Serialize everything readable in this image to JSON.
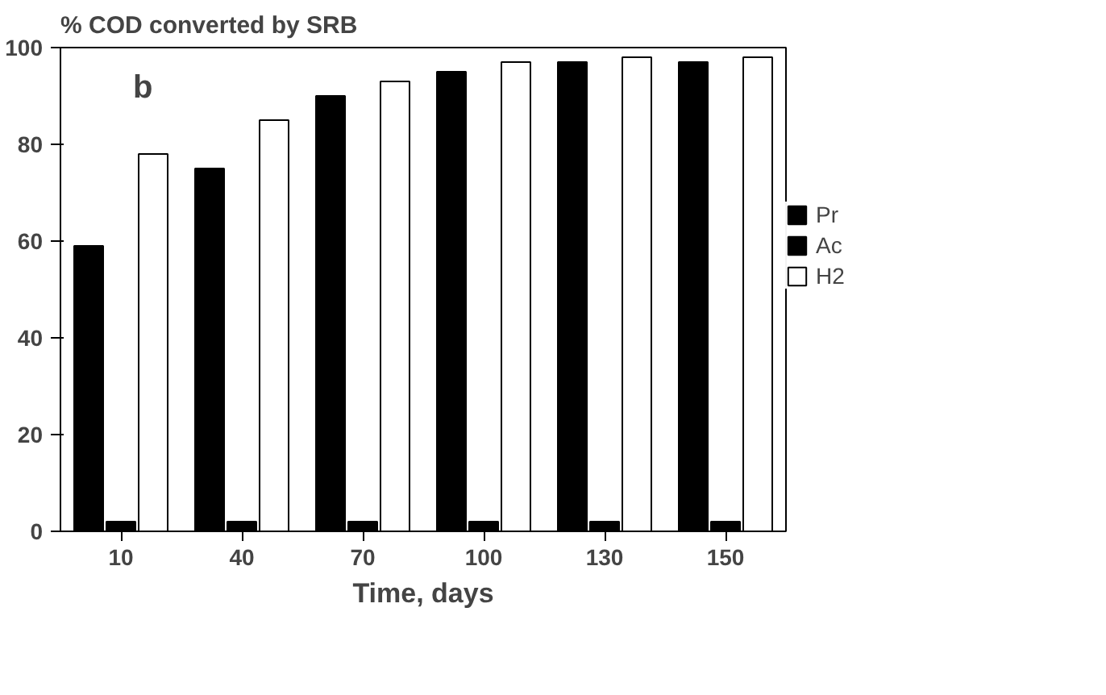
{
  "chart_data": {
    "type": "bar",
    "title": "% COD converted by SRB",
    "xlabel": "Time, days",
    "categories": [
      "10",
      "40",
      "70",
      "100",
      "130",
      "150"
    ],
    "series": [
      {
        "name": "Pr",
        "color": "#000000",
        "values": [
          59,
          75,
          90,
          95,
          97,
          97
        ]
      },
      {
        "name": "Ac",
        "color": "#000000",
        "values": [
          2,
          2,
          2,
          2,
          2,
          2
        ]
      },
      {
        "name": "H2",
        "color": "#ffffff",
        "values": [
          78,
          85,
          93,
          97,
          98,
          98
        ]
      }
    ],
    "ylim": [
      0,
      100
    ],
    "yticks": [
      0,
      20,
      40,
      60,
      80,
      100
    ],
    "grid": false,
    "legend": "right",
    "annotations": [
      "b"
    ]
  }
}
